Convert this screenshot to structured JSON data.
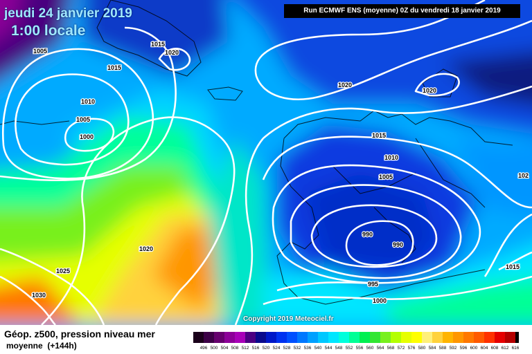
{
  "header": {
    "date": "jeudi 24 janvier 2019",
    "time": "1:00 locale",
    "run": "Run ECMWF ENS (moyenne) 0Z du vendredi 18 janvier 2019"
  },
  "copyright": "Copyright 2019 Meteociel.fr",
  "footer": {
    "title": "Géop. z500, pression niveau mer",
    "subtitle": "moyenne",
    "lead": "(+144h)"
  },
  "isobar_labels": [
    "1005",
    "1015",
    "1020",
    "1015",
    "1010",
    "1005",
    "1000",
    "1020",
    "1020",
    "1015",
    "1010",
    "1005",
    "102",
    "990",
    "990",
    "995",
    "1000",
    "1020",
    "1025",
    "1030",
    "1015"
  ],
  "legend": {
    "ticks": [
      "496",
      "500",
      "504",
      "508",
      "512",
      "516",
      "520",
      "524",
      "528",
      "532",
      "536",
      "540",
      "544",
      "548",
      "552",
      "556",
      "560",
      "564",
      "568",
      "572",
      "576",
      "580",
      "584",
      "588",
      "592",
      "596",
      "600",
      "604",
      "608",
      "612",
      "616"
    ],
    "colors": [
      "#1a001a",
      "#3c0046",
      "#66006e",
      "#8c0098",
      "#a800b8",
      "#4c0082",
      "#0a0a8c",
      "#0018c8",
      "#0032f0",
      "#0050ff",
      "#0078ff",
      "#00a0ff",
      "#00c8ff",
      "#00e6ff",
      "#00ffdc",
      "#00ff96",
      "#00f050",
      "#32e632",
      "#78f01e",
      "#b4ff00",
      "#e6ff00",
      "#ffff00",
      "#fff07a",
      "#ffd23c",
      "#ffb400",
      "#ff9600",
      "#ff7800",
      "#ff5a00",
      "#ff3200",
      "#e60000",
      "#b40000",
      "#000000"
    ]
  }
}
